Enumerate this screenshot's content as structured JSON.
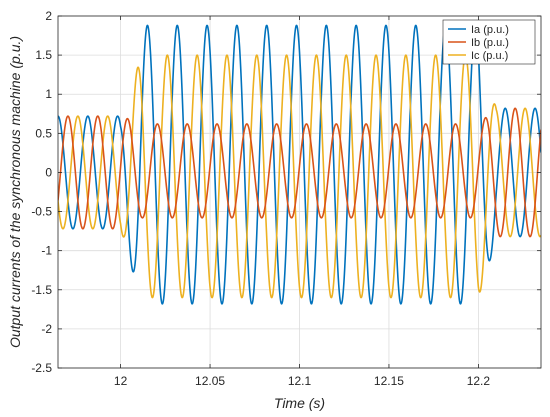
{
  "chart_data": {
    "type": "line",
    "title": "",
    "xlabel": "Time (s)",
    "ylabel": "Output currents of the synchronous machine (p.u.)",
    "xlim": [
      11.965,
      12.235
    ],
    "ylim": [
      -2.5,
      2
    ],
    "xticks": [
      12,
      12.05,
      12.1,
      12.15,
      12.2
    ],
    "xtick_labels": [
      "12",
      "12.05",
      "12.1",
      "12.15",
      "12.2"
    ],
    "yticks": [
      -2.5,
      -2,
      -1.5,
      -1,
      -0.5,
      0,
      0.5,
      1,
      1.5,
      2
    ],
    "ytick_labels": [
      "-2.5",
      "-2",
      "-1.5",
      "-1",
      "-0.5",
      "0",
      "0.5",
      "1",
      "1.5",
      "2"
    ],
    "grid": true,
    "legend_position": "top-right",
    "frequency_hz": 60,
    "fault_interval": [
      12.0,
      12.2
    ],
    "series": [
      {
        "name": "Ia (p.u.)",
        "color": "#0072BD",
        "amplitude_before": 0.72,
        "amplitude_during": 1.78,
        "amplitude_after": 0.82,
        "offset_during": 0.1,
        "peak_during": 1.95,
        "trough_during": -2.2,
        "phase_deg": 90
      },
      {
        "name": "Ib (p.u.)",
        "color": "#D95319",
        "amplitude_before": 0.72,
        "amplitude_during": 0.6,
        "amplitude_after": 0.82,
        "offset_during": 0.02,
        "peak_during": 0.65,
        "trough_during": -0.8,
        "phase_deg": -30
      },
      {
        "name": "Ic (p.u.)",
        "color": "#EDB120",
        "amplitude_before": 0.72,
        "amplitude_during": 1.55,
        "amplitude_after": 0.82,
        "offset_during": -0.05,
        "peak_during": 1.65,
        "trough_during": -1.55,
        "phase_deg": 210
      }
    ]
  }
}
